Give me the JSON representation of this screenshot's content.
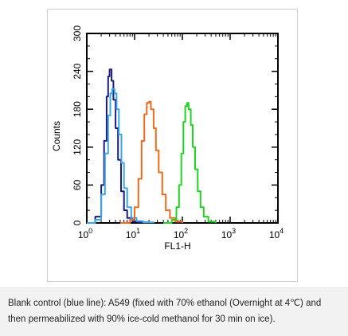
{
  "chart_data": {
    "type": "line",
    "xlabel": "FL1-H",
    "ylabel": "Counts",
    "x_scale": "log",
    "xlim": [
      1,
      10000
    ],
    "ylim": [
      0,
      300
    ],
    "x_ticks": [
      {
        "value": 1,
        "base": "10",
        "exp": "0"
      },
      {
        "value": 10,
        "base": "10",
        "exp": "1"
      },
      {
        "value": 100,
        "base": "10",
        "exp": "2"
      },
      {
        "value": 1000,
        "base": "10",
        "exp": "3"
      },
      {
        "value": 10000,
        "base": "10",
        "exp": "4"
      }
    ],
    "y_ticks": [
      "0",
      "60",
      "120",
      "180",
      "240",
      "300"
    ],
    "grid": false,
    "series": [
      {
        "color": "#1a1a8c",
        "x": [
          1,
          1.5,
          2,
          2.3,
          2.6,
          2.8,
          3.0,
          3.3,
          3.6,
          4.0,
          4.5,
          5.2,
          6.0,
          7.0,
          9.0,
          12,
          20
        ],
        "y": [
          0,
          10,
          60,
          130,
          200,
          232,
          243,
          225,
          195,
          150,
          100,
          50,
          20,
          8,
          2,
          1,
          0
        ]
      },
      {
        "color": "#39a6e6",
        "x": [
          1,
          1.5,
          2,
          2.4,
          2.8,
          3.1,
          3.4,
          3.8,
          4.2,
          4.7,
          5.3,
          6.0,
          7.0,
          8.5,
          11,
          15,
          25
        ],
        "y": [
          0,
          5,
          45,
          110,
          170,
          205,
          212,
          205,
          180,
          140,
          95,
          55,
          25,
          8,
          3,
          1,
          0
        ]
      },
      {
        "color": "#f06a1e",
        "x": [
          5,
          8,
          10,
          12,
          14,
          16,
          18,
          20,
          22,
          25,
          28,
          32,
          38,
          45,
          55,
          70,
          100
        ],
        "y": [
          0,
          5,
          25,
          70,
          130,
          172,
          190,
          192,
          180,
          150,
          115,
          80,
          45,
          20,
          8,
          2,
          0
        ]
      },
      {
        "color": "#22d422",
        "x": [
          40,
          60,
          75,
          85,
          95,
          105,
          115,
          125,
          135,
          150,
          165,
          185,
          210,
          240,
          280,
          350,
          500
        ],
        "y": [
          0,
          5,
          25,
          60,
          110,
          160,
          185,
          190,
          180,
          155,
          120,
          85,
          50,
          25,
          10,
          2,
          0
        ]
      }
    ]
  },
  "caption": {
    "line1": "Blank control (blue line): A549 (fixed with 70% ethanol (Overnight at 4℃) and",
    "line2": "then permeabilized with 90% ice-cold methanol for 30 min on ice)."
  }
}
